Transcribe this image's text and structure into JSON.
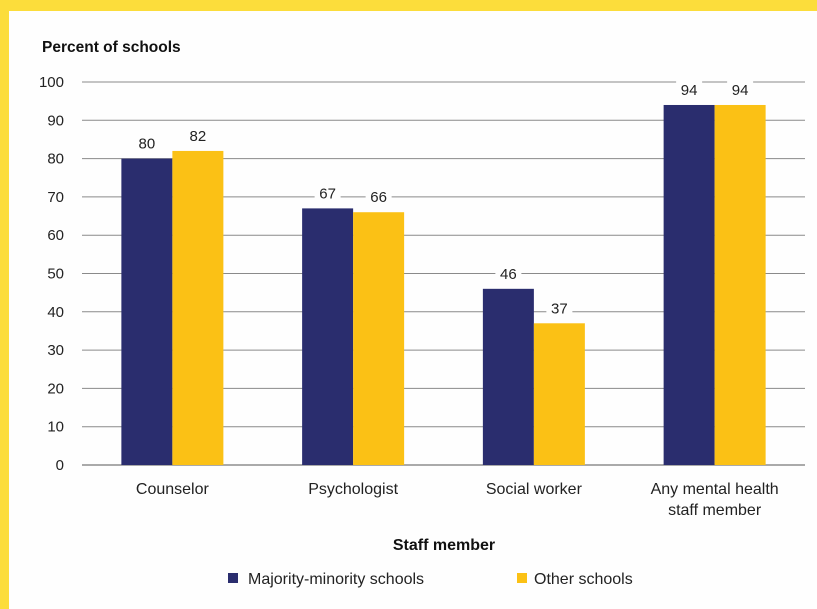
{
  "chart_data": {
    "type": "bar",
    "ylabel": "Percent of schools",
    "xlabel": "Staff member",
    "categories": [
      [
        "Counselor"
      ],
      [
        "Psychologist"
      ],
      [
        "Social worker"
      ],
      [
        "Any mental health",
        "staff member"
      ]
    ],
    "series": [
      {
        "name": "Majority-minority schools",
        "color": "#2a2d6e",
        "values": [
          80,
          67,
          46,
          94
        ]
      },
      {
        "name": "Other schools",
        "color": "#fbc115",
        "values": [
          82,
          66,
          37,
          94
        ]
      }
    ],
    "ylim": [
      0,
      100
    ],
    "yticks": [
      0,
      10,
      20,
      30,
      40,
      50,
      60,
      70,
      80,
      90,
      100
    ],
    "grid": true,
    "legend": "bottom-center"
  }
}
